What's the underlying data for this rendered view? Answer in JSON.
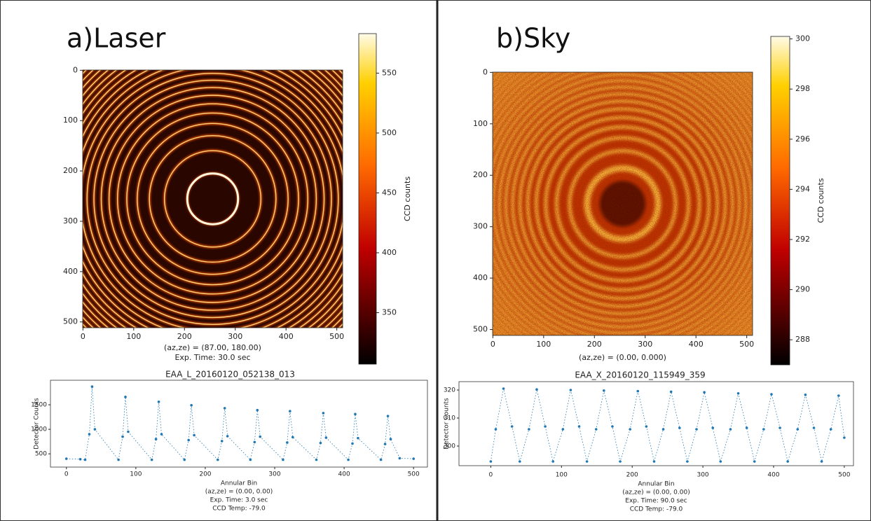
{
  "chart_data": [
    {
      "type": "heatmap",
      "title": "a)Laser",
      "xlim": [
        -0.5,
        511.5
      ],
      "ylim": [
        511.5,
        -0.5
      ],
      "xticks": [
        0,
        100,
        200,
        300,
        400,
        500
      ],
      "yticks": [
        0,
        100,
        200,
        300,
        400,
        500
      ],
      "notes": [
        "(az,ze) = (87.00, 180.00)",
        "Exp. Time: 30.0 sec"
      ],
      "subtitle": "EAA_L_20160120_052138_013",
      "colorbar": {
        "label": "CCD counts",
        "lim": [
          307,
          583
        ],
        "ticks": [
          350,
          400,
          450,
          500,
          550
        ]
      }
    },
    {
      "type": "scatter",
      "ylabel": "Detector Counts",
      "xlabel": "Annular Bin",
      "notes": [
        "(az,ze) = (0.00, 0.00)",
        "Exp. Time: 3.0 sec",
        "CCD Temp: -79.0"
      ],
      "xlim": [
        -23,
        520
      ],
      "ylim": [
        230,
        2000
      ],
      "xticks": [
        0,
        100,
        200,
        300,
        400,
        500
      ],
      "yticks": [
        500,
        1000,
        1500
      ],
      "color": "#1f77b4",
      "x": [
        0,
        20,
        27,
        33,
        37,
        41,
        75,
        81,
        85,
        89,
        123,
        129,
        133,
        137,
        170,
        176,
        180,
        184,
        218,
        224,
        228,
        232,
        265,
        271,
        275,
        279,
        312,
        318,
        322,
        326,
        360,
        366,
        370,
        374,
        406,
        412,
        416,
        420,
        453,
        459,
        463,
        467,
        480,
        500
      ],
      "y": [
        400,
        390,
        380,
        900,
        1870,
        1000,
        380,
        850,
        1660,
        950,
        380,
        800,
        1560,
        900,
        380,
        780,
        1490,
        880,
        380,
        760,
        1430,
        860,
        380,
        740,
        1390,
        850,
        380,
        730,
        1370,
        840,
        380,
        720,
        1330,
        830,
        380,
        710,
        1310,
        820,
        380,
        700,
        1270,
        800,
        410,
        400
      ]
    },
    {
      "type": "heatmap",
      "title": "b)Sky",
      "xlim": [
        -0.5,
        511.5
      ],
      "ylim": [
        511.5,
        -0.5
      ],
      "xticks": [
        0,
        100,
        200,
        300,
        400,
        500
      ],
      "yticks": [
        0,
        100,
        200,
        300,
        400,
        500
      ],
      "notes": [
        "(az,ze) = (0.00, 0.000)"
      ],
      "subtitle": "EAA_X_20160120_115949_359",
      "colorbar": {
        "label": "CCD counts",
        "lim": [
          287,
          300.1
        ],
        "ticks": [
          288,
          290,
          292,
          294,
          296,
          298,
          300
        ]
      }
    },
    {
      "type": "scatter",
      "ylabel": "Detector Counts",
      "xlabel": "Annular Bin",
      "notes": [
        "(az,ze) = (0.00, 0.00)",
        "Exp. Time: 90.0 sec",
        "CCD Temp: -79.0"
      ],
      "xlim": [
        -45,
        513
      ],
      "ylim": [
        293,
        323
      ],
      "xticks": [
        0,
        100,
        200,
        300,
        400,
        500
      ],
      "yticks": [
        300,
        310,
        320
      ],
      "color": "#1f77b4",
      "x": [
        0,
        7,
        18,
        30,
        41,
        54,
        65,
        77,
        88,
        102,
        113,
        125,
        136,
        149,
        160,
        172,
        183,
        197,
        208,
        220,
        231,
        244,
        255,
        267,
        278,
        291,
        302,
        314,
        325,
        339,
        350,
        362,
        373,
        386,
        397,
        409,
        420,
        434,
        445,
        457,
        468,
        481,
        492,
        500
      ],
      "y": [
        294.5,
        306,
        320.5,
        307,
        294.5,
        306,
        320.2,
        307,
        294.5,
        306,
        320,
        307,
        294.5,
        306,
        319.8,
        307,
        294.5,
        306,
        319.6,
        307,
        294.5,
        306,
        319.4,
        306.5,
        294.5,
        306,
        319.2,
        306.5,
        294.5,
        306,
        318.8,
        306.5,
        294.5,
        306,
        318.5,
        306.5,
        294.5,
        306,
        318.3,
        306.5,
        294.5,
        306,
        318,
        303
      ]
    }
  ]
}
